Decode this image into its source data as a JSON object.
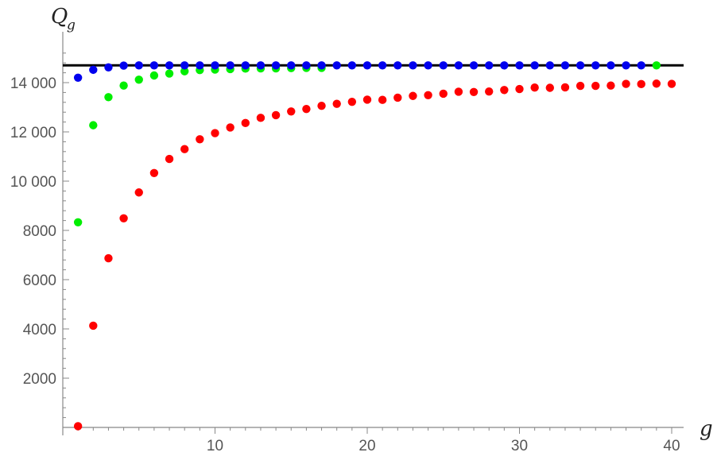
{
  "chart_data": {
    "type": "scatter",
    "title": "",
    "xlabel": "g",
    "ylabel_main": "Q",
    "ylabel_sub": "g",
    "xlim": [
      0,
      41
    ],
    "ylim": [
      0,
      15500
    ],
    "x_ticks": [
      10,
      20,
      30,
      40
    ],
    "x_tick_labels": [
      "10",
      "20",
      "30",
      "40"
    ],
    "y_ticks": [
      2000,
      4000,
      6000,
      8000,
      10000,
      12000,
      14000
    ],
    "y_tick_labels": [
      "2000",
      "4000",
      "6000",
      "8000",
      "10 000",
      "12 000",
      "14 000"
    ],
    "grid": false,
    "legend": "none",
    "reference_line": {
      "y": 14700,
      "color": "#000000"
    },
    "series": [
      {
        "color": "#ff0000",
        "x": [
          1,
          2,
          3,
          4,
          5,
          6,
          7,
          8,
          9,
          10,
          11,
          12,
          13,
          14,
          15,
          16,
          17,
          18,
          19,
          20,
          21,
          22,
          23,
          24,
          25,
          26,
          27,
          28,
          29,
          30,
          31,
          32,
          33,
          34,
          35,
          36,
          37,
          38,
          39,
          40
        ],
        "y": [
          50,
          4130,
          6870,
          8490,
          9540,
          10330,
          10900,
          11300,
          11700,
          11950,
          12180,
          12360,
          12570,
          12680,
          12830,
          12930,
          13060,
          13140,
          13220,
          13310,
          13300,
          13390,
          13460,
          13490,
          13550,
          13630,
          13620,
          13640,
          13700,
          13740,
          13800,
          13790,
          13810,
          13870,
          13870,
          13880,
          13950,
          13940,
          13960,
          13950
        ]
      },
      {
        "color": "#00ee00",
        "x": [
          1,
          2,
          3,
          4,
          5,
          6,
          7,
          8,
          9,
          10,
          11,
          12,
          13,
          14,
          15,
          16,
          17,
          39
        ],
        "y": [
          8330,
          12270,
          13410,
          13880,
          14120,
          14290,
          14370,
          14460,
          14510,
          14530,
          14550,
          14570,
          14580,
          14580,
          14590,
          14600,
          14600,
          14700
        ]
      },
      {
        "color": "#0000ee",
        "x": [
          1,
          2,
          3,
          4,
          5,
          6,
          7,
          8,
          9,
          10,
          11,
          12,
          13,
          14,
          15,
          16,
          17,
          18,
          19,
          20,
          21,
          22,
          23,
          24,
          25,
          26,
          27,
          28,
          29,
          30,
          31,
          32,
          33,
          34,
          35,
          36,
          37,
          38
        ],
        "y": [
          14200,
          14520,
          14620,
          14690,
          14700,
          14700,
          14700,
          14700,
          14700,
          14700,
          14700,
          14700,
          14700,
          14700,
          14700,
          14700,
          14700,
          14700,
          14700,
          14700,
          14700,
          14700,
          14700,
          14700,
          14700,
          14700,
          14700,
          14700,
          14700,
          14700,
          14700,
          14700,
          14700,
          14700,
          14700,
          14700,
          14700,
          14700
        ]
      }
    ]
  }
}
